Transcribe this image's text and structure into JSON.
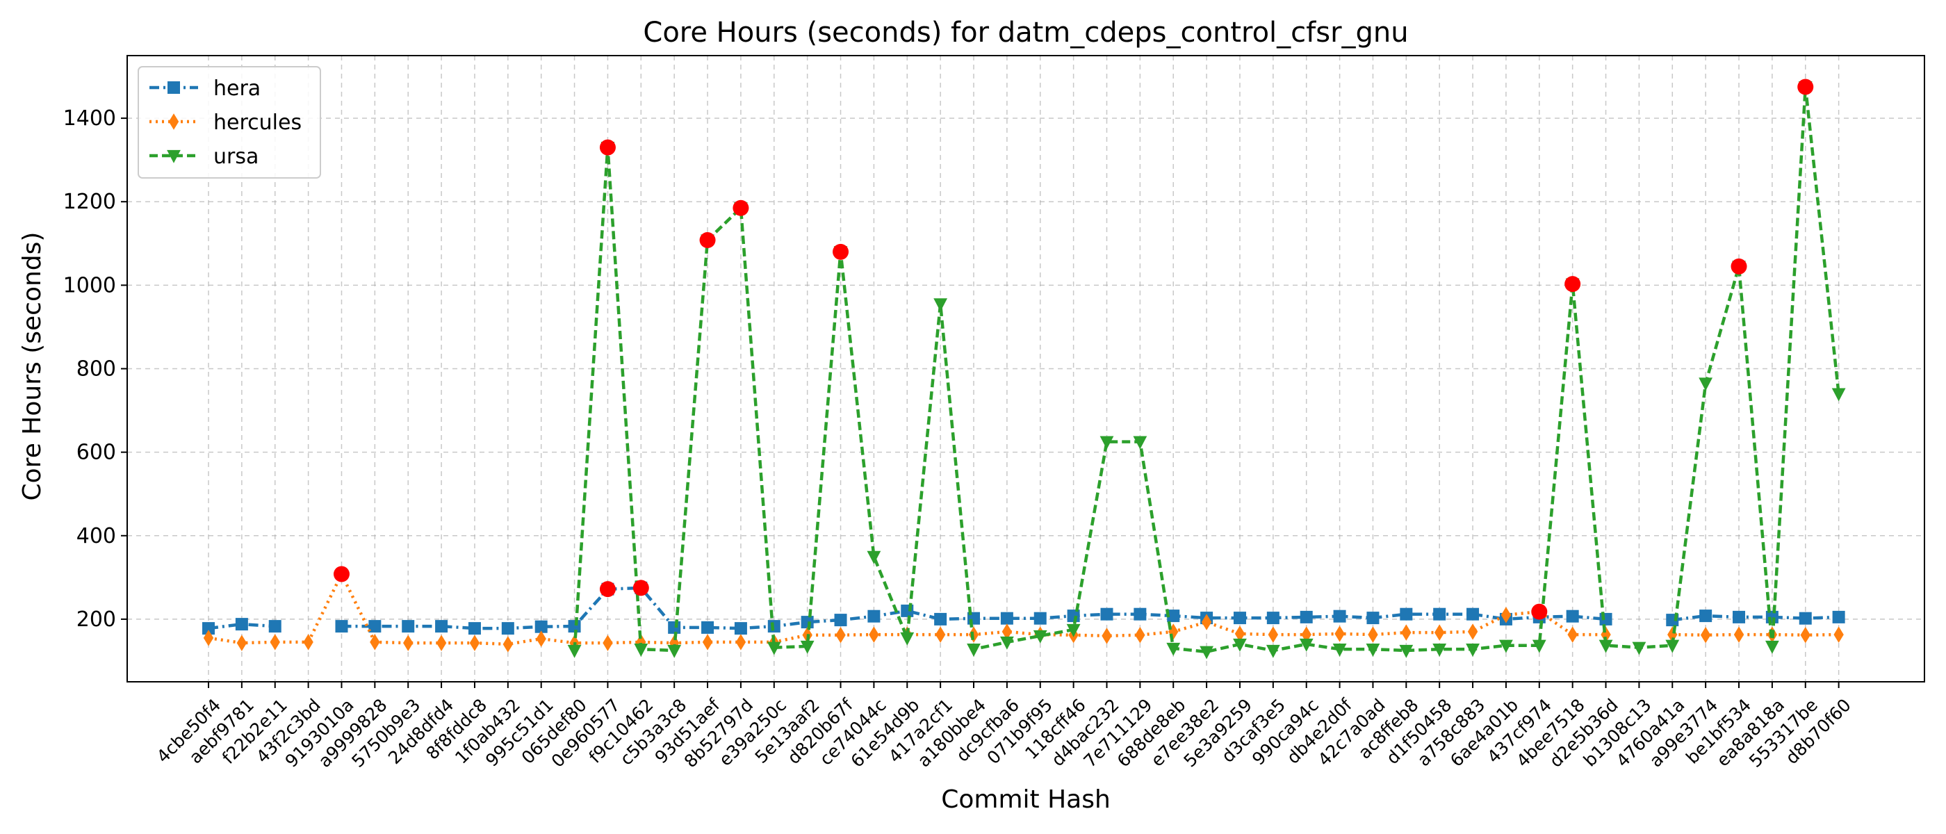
{
  "chart_data": {
    "type": "line",
    "title": "Core Hours (seconds) for datm_cdeps_control_cfsr_gnu",
    "xlabel": "Commit Hash",
    "ylabel": "Core Hours (seconds)",
    "ylim": [
      50,
      1550
    ],
    "yticks": [
      200,
      400,
      600,
      800,
      1000,
      1200,
      1400
    ],
    "grid": true,
    "legend_position": "top-left",
    "categories": [
      "4cbe50f4",
      "aebf9781",
      "f22b2e11",
      "43f2c3bd",
      "9193010a",
      "a9999828",
      "5750b9e3",
      "24d8dfd4",
      "8f8fddc8",
      "1f0ab432",
      "995c51d1",
      "065def80",
      "0e960577",
      "f9c10462",
      "c5b3a3c8",
      "93d51aef",
      "8b52797d",
      "e39a250c",
      "5e13aaf2",
      "d820b67f",
      "ce74044c",
      "61e54d9b",
      "417a2cf1",
      "a180bbe4",
      "dc9cfba6",
      "071b9f95",
      "118cff46",
      "d4bac232",
      "7e711129",
      "688de8eb",
      "e7ee38e2",
      "5e3a9259",
      "d3caf3e5",
      "990ca94c",
      "db4e2d0f",
      "42c7a0ad",
      "ac8ffeb8",
      "d1f50458",
      "a758c883",
      "6ae4a01b",
      "437cf974",
      "4bee7518",
      "d2e5b36d",
      "b1308c13",
      "4760a41a",
      "a99e3774",
      "be1bf534",
      "ea8a818a",
      "553317be",
      "d8b70f60"
    ],
    "series": [
      {
        "name": "hera",
        "color": "#1f77b4",
        "marker": "square",
        "dash": "dashdot",
        "values": [
          178,
          188,
          183,
          null,
          183,
          183,
          183,
          183,
          178,
          178,
          182,
          183,
          272,
          275,
          180,
          180,
          178,
          183,
          193,
          198,
          207,
          220,
          200,
          202,
          202,
          202,
          208,
          212,
          212,
          208,
          203,
          203,
          203,
          205,
          207,
          203,
          212,
          212,
          212,
          200,
          205,
          207,
          200,
          null,
          198,
          208,
          205,
          205,
          202,
          205
        ],
        "outliers": [
          12,
          13
        ]
      },
      {
        "name": "hercules",
        "color": "#ff7f0e",
        "marker": "diamond",
        "dash": "dotted",
        "values": [
          155,
          143,
          145,
          145,
          308,
          145,
          143,
          143,
          143,
          140,
          153,
          143,
          143,
          145,
          143,
          145,
          145,
          145,
          162,
          162,
          163,
          163,
          163,
          163,
          170,
          163,
          162,
          160,
          162,
          170,
          193,
          165,
          163,
          163,
          165,
          163,
          168,
          168,
          170,
          210,
          218,
          163,
          163,
          null,
          163,
          162,
          163,
          163,
          162,
          163
        ],
        "outliers": [
          4,
          40
        ]
      },
      {
        "name": "ursa",
        "color": "#2ca02c",
        "marker": "triangle-down",
        "dash": "dashed",
        "values": [
          null,
          null,
          null,
          null,
          null,
          null,
          null,
          null,
          null,
          null,
          null,
          125,
          1330,
          128,
          125,
          1108,
          1185,
          132,
          135,
          1080,
          350,
          155,
          955,
          128,
          145,
          160,
          175,
          625,
          625,
          130,
          122,
          140,
          125,
          140,
          128,
          128,
          125,
          128,
          128,
          137,
          137,
          1003,
          137,
          132,
          137,
          765,
          1045,
          135,
          1475,
          740
        ],
        "outliers": [
          12,
          15,
          16,
          19,
          41,
          46,
          48
        ]
      }
    ],
    "outlier_color": "#ff0000"
  }
}
